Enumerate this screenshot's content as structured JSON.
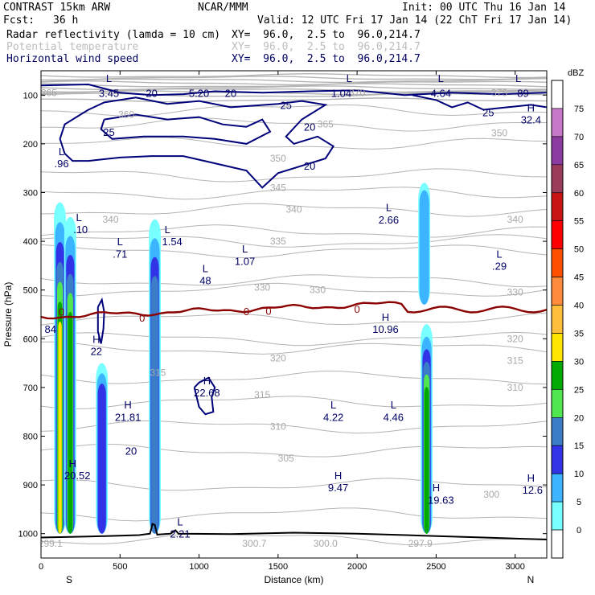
{
  "header": {
    "model": "CONTRAST 15km ARW",
    "center": "NCAR/MMM",
    "init": "Init: 00 UTC Thu 16 Jan 14",
    "fcst_label": "Fcst:",
    "fcst_value": "36 h",
    "valid": "Valid: 12 UTC Fri 17 Jan 14 (22 ChT Fri 17 Jan 14)",
    "fields": [
      {
        "name": "Radar reflectivity (lamda = 10 cm)",
        "xy": "XY=  96.0,  2.5 to  96.0,214.7",
        "color": "#000000"
      },
      {
        "name": "Potential temperature",
        "xy": "XY=  96.0,  2.5 to  96.0,214.7",
        "color": "#bdbdbd"
      },
      {
        "name": "Horizontal wind speed",
        "xy": "XY=  96.0,  2.5 to  96.0,214.7",
        "color": "#000060"
      }
    ]
  },
  "colorbar": {
    "title": "dBZ",
    "levels": [
      "75",
      "70",
      "65",
      "60",
      "55",
      "50",
      "45",
      "40",
      "35",
      "30",
      "25",
      "20",
      "15",
      "10",
      "5",
      "0"
    ],
    "colors": [
      "#ffffff",
      "#c878c8",
      "#8c3ca0",
      "#9b3c5a",
      "#c81414",
      "#ff0000",
      "#ff5000",
      "#ff8c3c",
      "#ffbe3c",
      "#ffe600",
      "#00aa00",
      "#50e650",
      "#3c7dc8",
      "#3232e6",
      "#3cb4ff",
      "#78ffff",
      "#ffffff"
    ]
  },
  "chart_data": {
    "type": "cross-section",
    "xlabel": "Distance (km)",
    "ylabel": "Pressure (hPa)",
    "x_ticks": [
      "0",
      "500",
      "1000",
      "1500",
      "2000",
      "2500",
      "3000"
    ],
    "y_ticks": [
      "100",
      "200",
      "300",
      "400",
      "500",
      "600",
      "700",
      "800",
      "900",
      "1000"
    ],
    "x_ends": [
      "S",
      "N"
    ],
    "xlim": [
      0,
      3200
    ],
    "ylim": [
      1050,
      50
    ],
    "freezing_level_label": "0",
    "reflectivity_columns": [
      {
        "x_km": 120,
        "p_top": 320,
        "p_bot": 1000,
        "max_dbz": 35
      },
      {
        "x_km": 185,
        "p_top": 350,
        "p_bot": 1000,
        "max_dbz": 30
      },
      {
        "x_km": 385,
        "p_top": 650,
        "p_bot": 1000,
        "max_dbz": 15
      },
      {
        "x_km": 720,
        "p_top": 355,
        "p_bot": 1000,
        "max_dbz": 20
      },
      {
        "x_km": 2425,
        "p_top": 280,
        "p_bot": 530,
        "max_dbz": 10
      },
      {
        "x_km": 2440,
        "p_top": 570,
        "p_bot": 1000,
        "max_dbz": 30
      }
    ],
    "theta_labels": [
      {
        "t": "365",
        "x": 50,
        "p": 95
      },
      {
        "t": "370",
        "x": 2000,
        "p": 95
      },
      {
        "t": "375",
        "x": 2900,
        "p": 95
      },
      {
        "t": "360",
        "x": 540,
        "p": 140
      },
      {
        "t": "365",
        "x": 1800,
        "p": 160
      },
      {
        "t": "350",
        "x": 2900,
        "p": 178
      },
      {
        "t": "350",
        "x": 1500,
        "p": 230
      },
      {
        "t": "345",
        "x": 1500,
        "p": 290
      },
      {
        "t": "340",
        "x": 440,
        "p": 355
      },
      {
        "t": "340",
        "x": 1600,
        "p": 335
      },
      {
        "t": "340",
        "x": 3000,
        "p": 355
      },
      {
        "t": "335",
        "x": 1500,
        "p": 400
      },
      {
        "t": "330",
        "x": 1400,
        "p": 495
      },
      {
        "t": "330",
        "x": 1750,
        "p": 500
      },
      {
        "t": "330",
        "x": 3000,
        "p": 505
      },
      {
        "t": "320",
        "x": 3000,
        "p": 600
      },
      {
        "t": "320",
        "x": 1500,
        "p": 640
      },
      {
        "t": "315",
        "x": 740,
        "p": 670
      },
      {
        "t": "315",
        "x": 1400,
        "p": 715
      },
      {
        "t": "315",
        "x": 3000,
        "p": 645
      },
      {
        "t": "310",
        "x": 3000,
        "p": 700
      },
      {
        "t": "310",
        "x": 1500,
        "p": 780
      },
      {
        "t": "305",
        "x": 1550,
        "p": 845
      },
      {
        "t": "300",
        "x": 2850,
        "p": 920
      },
      {
        "t": "300.7",
        "x": 1350,
        "p": 1020
      },
      {
        "t": "300.0",
        "x": 1800,
        "p": 1020
      },
      {
        "t": "297.9",
        "x": 2400,
        "p": 1020
      },
      {
        "t": "299.1",
        "x": 60,
        "p": 1020
      }
    ],
    "wind_labels": [
      {
        "t": "L",
        "x": 430,
        "p": 65
      },
      {
        "t": "3.45",
        "x": 430,
        "p": 95
      },
      {
        "t": "20",
        "x": 700,
        "p": 95
      },
      {
        "t": "5.20",
        "x": 1000,
        "p": 95
      },
      {
        "t": "20",
        "x": 1200,
        "p": 95
      },
      {
        "t": "L",
        "x": 1950,
        "p": 65
      },
      {
        "t": "1.04",
        "x": 1900,
        "p": 95
      },
      {
        "t": "L",
        "x": 2530,
        "p": 65
      },
      {
        "t": "4.64",
        "x": 2530,
        "p": 95
      },
      {
        "t": "L",
        "x": 3020,
        "p": 65
      },
      {
        "t": "89",
        "x": 3050,
        "p": 95
      },
      {
        "t": "25",
        "x": 1550,
        "p": 120
      },
      {
        "t": "25",
        "x": 2830,
        "p": 135
      },
      {
        "t": "H",
        "x": 3100,
        "p": 125
      },
      {
        "t": "32.4",
        "x": 3100,
        "p": 150
      },
      {
        "t": "20",
        "x": 1700,
        "p": 165
      },
      {
        "t": "25",
        "x": 430,
        "p": 175
      },
      {
        "t": "L",
        "x": 130,
        "p": 215
      },
      {
        "t": ".96",
        "x": 130,
        "p": 240
      },
      {
        "t": "20",
        "x": 1700,
        "p": 245
      },
      {
        "t": "L",
        "x": 240,
        "p": 350
      },
      {
        "t": ".10",
        "x": 250,
        "p": 375
      },
      {
        "t": "L",
        "x": 500,
        "p": 400
      },
      {
        "t": ".71",
        "x": 500,
        "p": 425
      },
      {
        "t": "L",
        "x": 800,
        "p": 375
      },
      {
        "t": "1.54",
        "x": 830,
        "p": 400
      },
      {
        "t": "L",
        "x": 1290,
        "p": 415
      },
      {
        "t": "1.07",
        "x": 1290,
        "p": 440
      },
      {
        "t": "L",
        "x": 1040,
        "p": 455
      },
      {
        "t": "48",
        "x": 1040,
        "p": 480
      },
      {
        "t": "L",
        "x": 2200,
        "p": 330
      },
      {
        "t": "2.66",
        "x": 2200,
        "p": 355
      },
      {
        "t": "L",
        "x": 2900,
        "p": 425
      },
      {
        "t": ".29",
        "x": 2900,
        "p": 450
      },
      {
        "t": "84",
        "x": 60,
        "p": 580
      },
      {
        "t": "H",
        "x": 350,
        "p": 600
      },
      {
        "t": "22",
        "x": 350,
        "p": 625
      },
      {
        "t": "H",
        "x": 1050,
        "p": 685
      },
      {
        "t": "22.68",
        "x": 1050,
        "p": 710
      },
      {
        "t": "H",
        "x": 2180,
        "p": 555
      },
      {
        "t": "10.96",
        "x": 2180,
        "p": 580
      },
      {
        "t": "H",
        "x": 550,
        "p": 735
      },
      {
        "t": "21.81",
        "x": 550,
        "p": 760
      },
      {
        "t": "L",
        "x": 1850,
        "p": 735
      },
      {
        "t": "4.22",
        "x": 1850,
        "p": 760
      },
      {
        "t": "L",
        "x": 2230,
        "p": 735
      },
      {
        "t": "4.46",
        "x": 2230,
        "p": 760
      },
      {
        "t": "20",
        "x": 570,
        "p": 830
      },
      {
        "t": "H",
        "x": 200,
        "p": 855
      },
      {
        "t": "20.52",
        "x": 230,
        "p": 880
      },
      {
        "t": "H",
        "x": 1880,
        "p": 880
      },
      {
        "t": "9.47",
        "x": 1880,
        "p": 905
      },
      {
        "t": "H",
        "x": 2500,
        "p": 905
      },
      {
        "t": "19.63",
        "x": 2530,
        "p": 930
      },
      {
        "t": "H",
        "x": 3100,
        "p": 885
      },
      {
        "t": "12.6",
        "x": 3110,
        "p": 910
      },
      {
        "t": "L",
        "x": 880,
        "p": 975
      },
      {
        "t": "2.21",
        "x": 880,
        "p": 1000
      }
    ]
  }
}
